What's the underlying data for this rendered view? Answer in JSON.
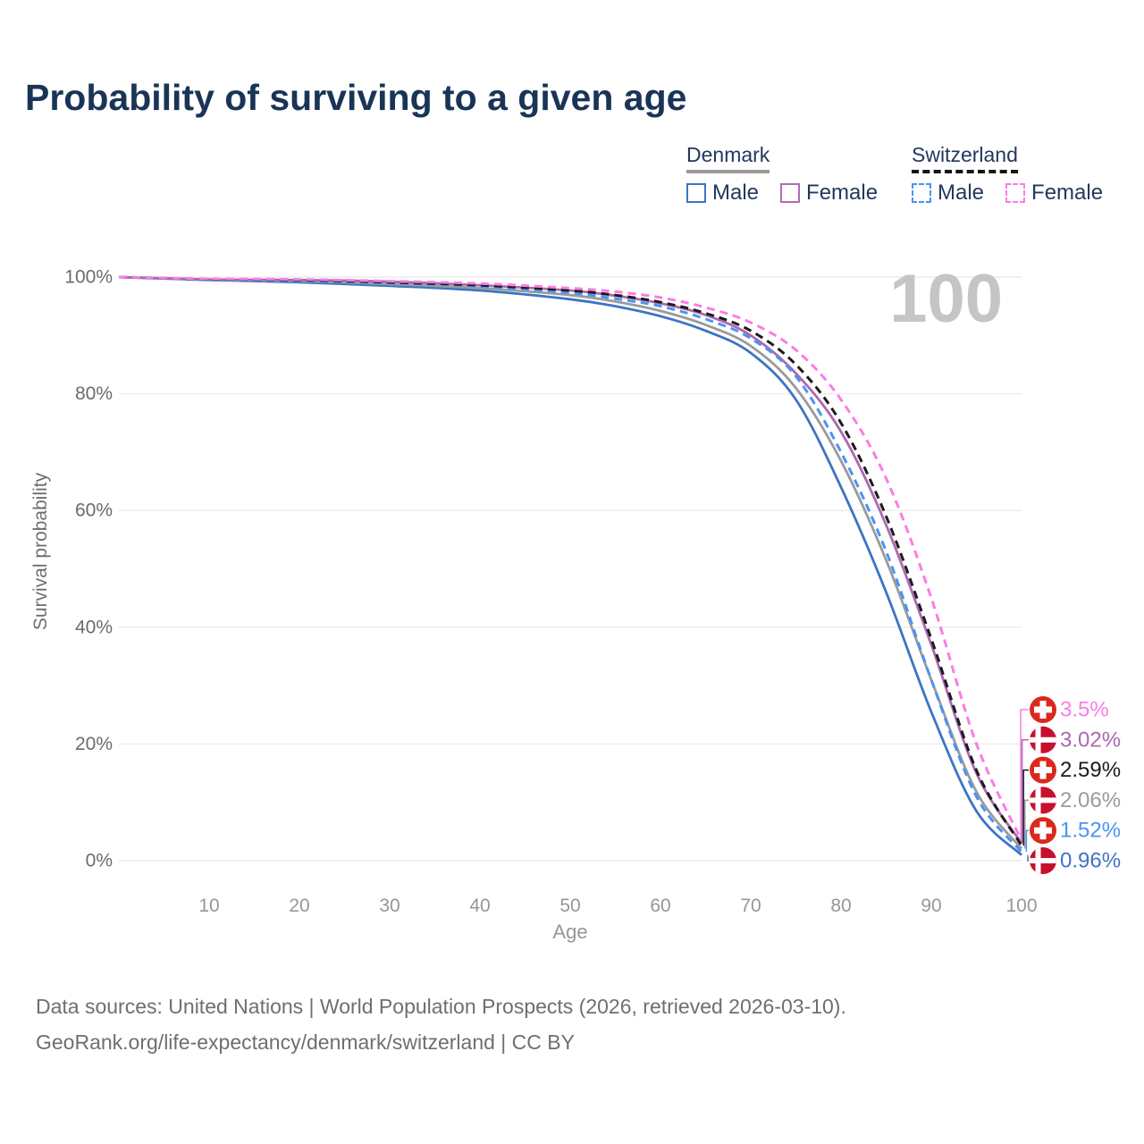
{
  "title": "Probability of surviving to a given age",
  "watermark": "100",
  "legend": {
    "groups": [
      {
        "label": "Denmark",
        "underline_style": "solid",
        "underline_color": "#9a9a9a",
        "items": [
          {
            "label": "Male",
            "color": "#3d74c4",
            "dash": false
          },
          {
            "label": "Female",
            "color": "#b06cb4",
            "dash": false
          }
        ]
      },
      {
        "label": "Switzerland",
        "underline_style": "dashed",
        "underline_color": "#151515",
        "items": [
          {
            "label": "Male",
            "color": "#4b93f5",
            "dash": true
          },
          {
            "label": "Female",
            "color": "#fb7ce5",
            "dash": true
          }
        ]
      }
    ]
  },
  "axes": {
    "x_label": "Age",
    "y_label": "Survival probability",
    "x_ticks": [
      10,
      20,
      30,
      40,
      50,
      60,
      70,
      80,
      90,
      100
    ],
    "y_ticks": [
      {
        "value": 100,
        "label": "100%"
      },
      {
        "value": 80,
        "label": "80%"
      },
      {
        "value": 60,
        "label": "60%"
      },
      {
        "value": 40,
        "label": "40%"
      },
      {
        "value": 20,
        "label": "20%"
      },
      {
        "value": 0,
        "label": "0%"
      }
    ]
  },
  "chart_data": {
    "type": "line",
    "title": "Probability of surviving to a given age",
    "xlabel": "Age",
    "ylabel": "Survival probability",
    "x_range": [
      0,
      100
    ],
    "y_range_percent": [
      0,
      100
    ],
    "grid": "horizontal-only",
    "legend_position": "top-right",
    "ages": [
      0,
      10,
      20,
      30,
      40,
      50,
      55,
      60,
      65,
      70,
      75,
      80,
      85,
      90,
      95,
      100
    ],
    "series": [
      {
        "name": "Denmark Male",
        "country": "Denmark",
        "sex": "Male",
        "flag": "denmark",
        "color": "#3d74c4",
        "dash": false,
        "end_label": "0.96%",
        "values": [
          100,
          99.5,
          99.1,
          98.5,
          97.7,
          96.2,
          95.0,
          93.3,
          90.8,
          87.0,
          79.0,
          64.0,
          46.0,
          25.5,
          8.5,
          0.96
        ]
      },
      {
        "name": "Denmark Both sexes",
        "country": "Denmark",
        "sex": "Both",
        "flag": "denmark",
        "color": "#9b9b9b",
        "dash": false,
        "end_label": "2.06%",
        "values": [
          100,
          99.55,
          99.3,
          98.8,
          98.1,
          96.9,
          95.8,
          94.2,
          91.8,
          88.2,
          81.0,
          68.5,
          51.5,
          31.0,
          11.8,
          2.06
        ]
      },
      {
        "name": "Denmark Female",
        "country": "Denmark",
        "sex": "Female",
        "flag": "denmark",
        "color": "#ad68b0",
        "dash": false,
        "end_label": "3.02%",
        "values": [
          100,
          99.6,
          99.5,
          99.2,
          98.6,
          97.7,
          96.8,
          95.5,
          93.5,
          90.0,
          83.5,
          73.5,
          57.5,
          37.0,
          15.0,
          3.02
        ]
      },
      {
        "name": "Switzerland Male",
        "country": "Switzerland",
        "sex": "Male",
        "flag": "switzerland",
        "color": "#4b93f5",
        "dash": true,
        "end_label": "1.52%",
        "values": [
          100,
          99.6,
          99.3,
          99.0,
          98.4,
          97.3,
          96.3,
          95.0,
          92.8,
          89.5,
          83.0,
          70.0,
          53.0,
          31.0,
          11.0,
          1.52
        ]
      },
      {
        "name": "Switzerland Both sexes",
        "country": "Switzerland",
        "sex": "Both",
        "flag": "switzerland",
        "color": "#1b1b1b",
        "dash": true,
        "end_label": "2.59%",
        "values": [
          100,
          99.65,
          99.5,
          99.1,
          98.6,
          97.7,
          96.9,
          95.7,
          93.8,
          90.8,
          85.0,
          75.0,
          59.0,
          38.0,
          15.5,
          2.59
        ]
      },
      {
        "name": "Switzerland Female",
        "country": "Switzerland",
        "sex": "Female",
        "flag": "switzerland",
        "color": "#fb7ce5",
        "dash": true,
        "end_label": "3.5%",
        "values": [
          100,
          99.7,
          99.6,
          99.3,
          98.9,
          98.1,
          97.5,
          96.5,
          94.8,
          92.2,
          87.5,
          79.0,
          65.5,
          45.0,
          20.0,
          3.5
        ]
      }
    ],
    "flag_colors": {
      "denmark": "#c8102e",
      "switzerland": "#da291c"
    }
  },
  "footer": {
    "line1": "Data sources: United Nations | World Population Prospects (2026, retrieved 2026-03-10).",
    "line2": "GeoRank.org/life-expectancy/denmark/switzerland | CC BY"
  }
}
